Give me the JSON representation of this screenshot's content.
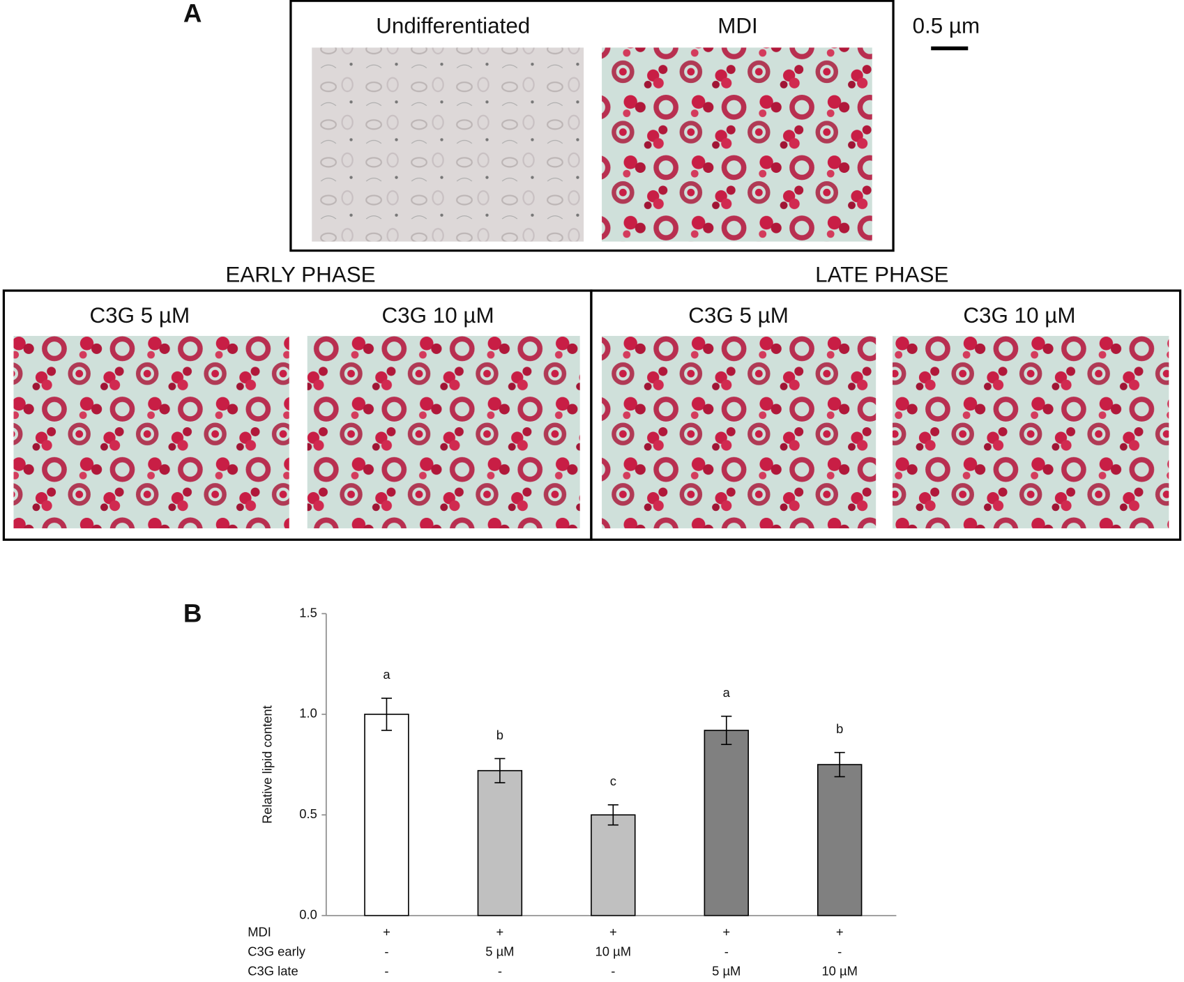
{
  "panel_a": {
    "label": "A",
    "scale_bar": "0.5 µm",
    "top_panels": [
      "Undifferentiated",
      "MDI"
    ],
    "early_phase": "EARLY PHASE",
    "late_phase": "LATE PHASE",
    "early_panels": [
      "C3G 5 µM",
      "C3G 10 µM"
    ],
    "late_panels": [
      "C3G 5 µM",
      "C3G 10 µM"
    ]
  },
  "chart_data": {
    "type": "bar",
    "panel_label": "B",
    "y_label": "Relative lipid content",
    "values": [
      1.0,
      0.72,
      0.5,
      0.92,
      0.75
    ],
    "errors": [
      0.08,
      0.06,
      0.05,
      0.07,
      0.06
    ],
    "letters": [
      "a",
      "b",
      "c",
      "a",
      "b"
    ],
    "colors": [
      "#ffffff",
      "#c0c0c0",
      "#c0c0c0",
      "#808080",
      "#808080"
    ],
    "ylim": [
      0,
      1.5
    ],
    "yticks": [
      {
        "value": 0,
        "label": "0.0"
      },
      {
        "value": 0.5,
        "label": "0.5"
      },
      {
        "value": 1,
        "label": "1.0"
      },
      {
        "value": 1.5,
        "label": "1.5"
      }
    ],
    "treatments": [
      {
        "name": "MDI",
        "values": [
          "+",
          "+",
          "+",
          "+",
          "+"
        ]
      },
      {
        "name": "C3G early",
        "values": [
          "-",
          "5 µM",
          "10 µM",
          "-",
          "-"
        ]
      },
      {
        "name": "C3G late",
        "values": [
          "-",
          "-",
          "-",
          "5 µM",
          "10 µM"
        ]
      }
    ]
  }
}
